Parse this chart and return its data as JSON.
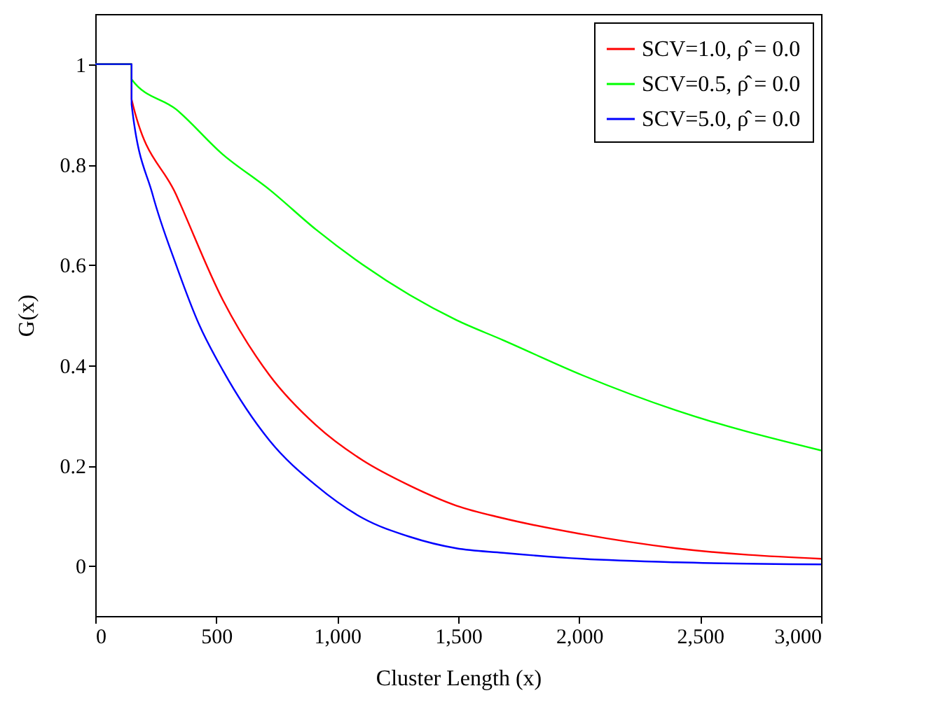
{
  "chart_data": {
    "type": "line",
    "xlabel": "Cluster Length (x)",
    "ylabel": "G(x)",
    "xlim": [
      0,
      3000
    ],
    "ylim": [
      -0.1,
      1.1
    ],
    "xticks": [
      0,
      500,
      {
        "value": 1000,
        "label": "1,000"
      },
      {
        "value": 1500,
        "label": "1,500"
      },
      {
        "value": 2000,
        "label": "2,000"
      },
      {
        "value": 2500,
        "label": "2,500"
      },
      {
        "value": 3000,
        "label": "3,000"
      }
    ],
    "yticks": [
      0,
      0.2,
      0.4,
      0.6,
      0.8,
      1
    ],
    "grid": false,
    "legend": "top right",
    "marker": "none",
    "line_style": "solid",
    "series": [
      {
        "name": "SCV=1.0, ρ̂ = 0.0",
        "color": "#ff0000",
        "x": [
          0,
          150,
          150,
          334,
          527,
          720,
          913,
          1106,
          1299,
          1492,
          1685,
          2013,
          2400,
          3000
        ],
        "values": [
          1,
          1,
          0.93,
          0.74,
          0.53,
          0.38,
          0.28,
          0.21,
          0.16,
          0.12,
          0.095,
          0.063,
          0.035,
          0.014
        ]
      },
      {
        "name": "SCV=0.5, ρ̂ = 0.0",
        "color": "#00ff00",
        "x": [
          0,
          150,
          150,
          334,
          527,
          720,
          913,
          1106,
          1299,
          1492,
          1685,
          2013,
          2400,
          3000
        ],
        "values": [
          1,
          1,
          0.97,
          0.91,
          0.82,
          0.75,
          0.67,
          0.6,
          0.54,
          0.49,
          0.45,
          0.38,
          0.31,
          0.23
        ]
      },
      {
        "name": "SCV=5.0, ρ̂ = 0.0",
        "color": "#0000ff",
        "x": [
          0,
          150,
          150,
          237,
          334,
          430,
          527,
          720,
          913,
          1106,
          1299,
          1492,
          1685,
          2013,
          2400,
          3000
        ],
        "values": [
          1,
          1,
          0.92,
          0.74,
          0.6,
          0.48,
          0.39,
          0.25,
          0.16,
          0.095,
          0.058,
          0.035,
          0.026,
          0.014,
          0.007,
          0.003
        ]
      }
    ]
  }
}
